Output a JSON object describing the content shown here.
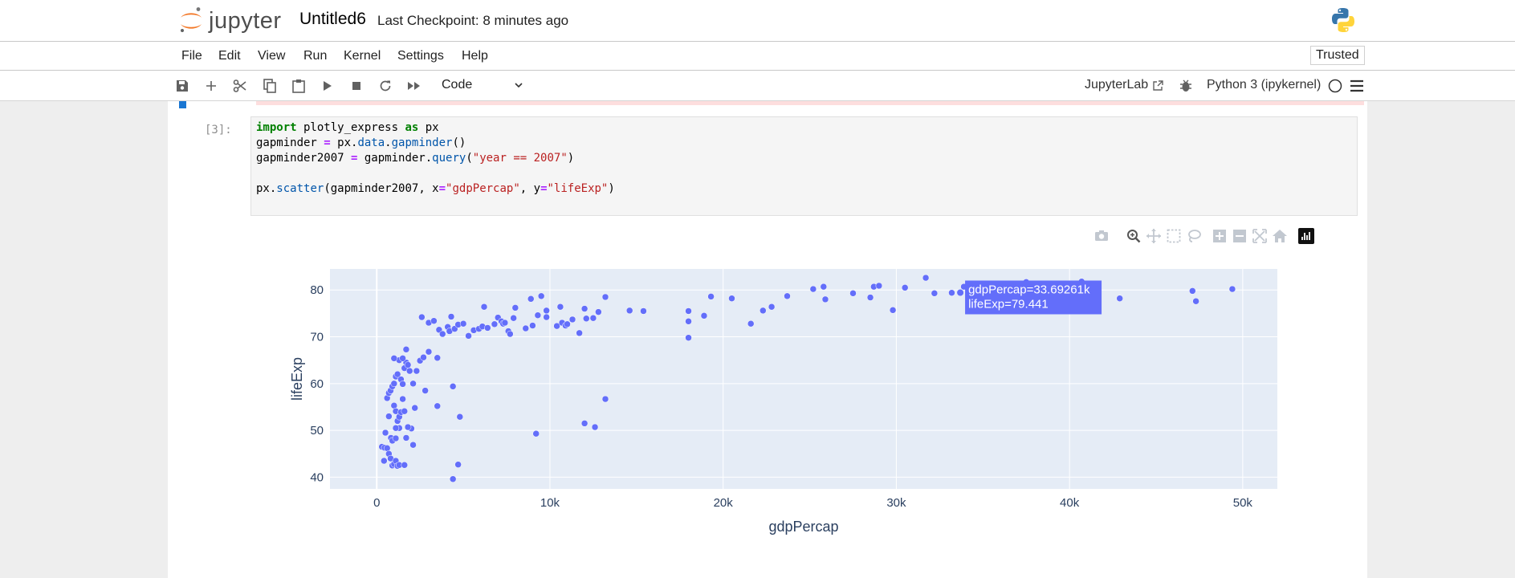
{
  "app": {
    "logo_text": "jupyter",
    "notebook_title": "Untitled6",
    "checkpoint": "Last Checkpoint: 8 minutes ago"
  },
  "menu": {
    "items": [
      "File",
      "Edit",
      "View",
      "Run",
      "Kernel",
      "Settings",
      "Help"
    ],
    "trusted": "Trusted"
  },
  "toolbar": {
    "cell_type": "Code",
    "jupyterlab_label": "JupyterLab",
    "kernel_name": "Python 3 (ipykernel)"
  },
  "cell": {
    "prompt": "[3]:",
    "lines": [
      [
        {
          "t": "import",
          "c": "kw"
        },
        {
          "t": " plotly_express ",
          "c": ""
        },
        {
          "t": "as",
          "c": "kw"
        },
        {
          "t": " px",
          "c": ""
        }
      ],
      [
        {
          "t": "gapminder ",
          "c": ""
        },
        {
          "t": "=",
          "c": "op"
        },
        {
          "t": " px.",
          "c": ""
        },
        {
          "t": "data",
          "c": "attr"
        },
        {
          "t": ".",
          "c": ""
        },
        {
          "t": "gapminder",
          "c": "attr"
        },
        {
          "t": "()",
          "c": ""
        }
      ],
      [
        {
          "t": "gapminder2007 ",
          "c": ""
        },
        {
          "t": "=",
          "c": "op"
        },
        {
          "t": " gapminder.",
          "c": ""
        },
        {
          "t": "query",
          "c": "attr"
        },
        {
          "t": "(",
          "c": ""
        },
        {
          "t": "\"year == 2007\"",
          "c": "str"
        },
        {
          "t": ")",
          "c": ""
        }
      ],
      [],
      [
        {
          "t": "px.",
          "c": ""
        },
        {
          "t": "scatter",
          "c": "attr"
        },
        {
          "t": "(gapminder2007, x",
          "c": ""
        },
        {
          "t": "=",
          "c": "op"
        },
        {
          "t": "\"gdpPercap\"",
          "c": "str"
        },
        {
          "t": ", y",
          "c": ""
        },
        {
          "t": "=",
          "c": "op"
        },
        {
          "t": "\"lifeExp\"",
          "c": "str"
        },
        {
          "t": ")",
          "c": ""
        }
      ]
    ]
  },
  "modebar": {
    "icons": [
      "camera-icon",
      "zoom-icon",
      "pan-icon",
      "box-select-icon",
      "lasso-icon",
      "zoom-in-icon",
      "zoom-out-icon",
      "autoscale-icon",
      "reset-axes-icon",
      "plotly-logo-icon"
    ]
  },
  "chart_data": {
    "type": "scatter",
    "title": "",
    "xlabel": "gdpPercap",
    "ylabel": "lifeExp",
    "xlim": [
      -2700,
      52000
    ],
    "ylim": [
      37.5,
      84.5
    ],
    "x_ticks": [
      0,
      10000,
      20000,
      30000,
      40000,
      50000
    ],
    "x_tick_labels": [
      "0",
      "10k",
      "20k",
      "30k",
      "40k",
      "50k"
    ],
    "y_ticks": [
      40,
      50,
      60,
      70,
      80
    ],
    "y_tick_labels": [
      "40",
      "50",
      "60",
      "70",
      "80"
    ],
    "color": "#636efa",
    "grid": true,
    "hover": {
      "x": 33692.61,
      "y": 79.441,
      "line1": "gdpPercap=33.69261k",
      "line2": "lifeExp=79.441"
    },
    "points": [
      [
        300,
        46.5
      ],
      [
        450,
        46.3
      ],
      [
        600,
        46.2
      ],
      [
        700,
        45
      ],
      [
        800,
        44
      ],
      [
        900,
        42.5
      ],
      [
        1000,
        42.8
      ],
      [
        1100,
        43.5
      ],
      [
        1200,
        42.4
      ],
      [
        1300,
        42.6
      ],
      [
        1600,
        42.6
      ],
      [
        420,
        43.5
      ],
      [
        500,
        49.5
      ],
      [
        820,
        48.4
      ],
      [
        900,
        47.8
      ],
      [
        1100,
        48.3
      ],
      [
        1300,
        50.5
      ],
      [
        1700,
        48.4
      ],
      [
        2000,
        50.4
      ],
      [
        2100,
        46.9
      ],
      [
        1800,
        50.7
      ],
      [
        600,
        56.9
      ],
      [
        700,
        58.0
      ],
      [
        800,
        58.5
      ],
      [
        900,
        59.5
      ],
      [
        1000,
        55.3
      ],
      [
        1100,
        54.1
      ],
      [
        1200,
        52.0
      ],
      [
        1300,
        52.9
      ],
      [
        1400,
        53.9
      ],
      [
        1500,
        56.7
      ],
      [
        1600,
        54.1
      ],
      [
        700,
        53.0
      ],
      [
        1100,
        50.5
      ],
      [
        2200,
        54.8
      ],
      [
        900,
        59.4
      ],
      [
        1000,
        60.0
      ],
      [
        1100,
        61.5
      ],
      [
        1200,
        62.0
      ],
      [
        1400,
        60.9
      ],
      [
        1500,
        59.9
      ],
      [
        1600,
        63.3
      ],
      [
        1700,
        64.5
      ],
      [
        1900,
        62.7
      ],
      [
        2100,
        60.0
      ],
      [
        2300,
        62.7
      ],
      [
        2800,
        58.5
      ],
      [
        1300,
        65.0
      ],
      [
        1000,
        65.4
      ],
      [
        1500,
        65.4
      ],
      [
        1700,
        67.3
      ],
      [
        2500,
        64.9
      ],
      [
        1800,
        64.0
      ],
      [
        3000,
        66.8
      ],
      [
        3500,
        65.5
      ],
      [
        2700,
        65.6
      ],
      [
        2600,
        74.2
      ],
      [
        3000,
        73.0
      ],
      [
        3300,
        73.4
      ],
      [
        3600,
        71.5
      ],
      [
        3800,
        70.6
      ],
      [
        4100,
        72.1
      ],
      [
        4200,
        71.2
      ],
      [
        4300,
        74.3
      ],
      [
        4500,
        71.7
      ],
      [
        4700,
        72.6
      ],
      [
        5000,
        72.8
      ],
      [
        5300,
        70.2
      ],
      [
        5600,
        71.4
      ],
      [
        5900,
        71.7
      ],
      [
        6100,
        72.2
      ],
      [
        6200,
        76.4
      ],
      [
        6400,
        71.9
      ],
      [
        6800,
        72.7
      ],
      [
        7000,
        74.1
      ],
      [
        7200,
        73.3
      ],
      [
        7300,
        72.8
      ],
      [
        7400,
        73.0
      ],
      [
        7600,
        71.2
      ],
      [
        7700,
        70.6
      ],
      [
        7900,
        74.0
      ],
      [
        8000,
        76.2
      ],
      [
        8600,
        71.8
      ],
      [
        9000,
        72.4
      ],
      [
        9300,
        74.6
      ],
      [
        8900,
        78.1
      ],
      [
        9500,
        78.7
      ],
      [
        9800,
        75.6
      ],
      [
        9800,
        74.2
      ],
      [
        10400,
        72.3
      ],
      [
        10600,
        76.4
      ],
      [
        10700,
        73.0
      ],
      [
        10900,
        72.4
      ],
      [
        11000,
        72.7
      ],
      [
        11300,
        73.7
      ],
      [
        11700,
        70.8
      ],
      [
        12000,
        76.0
      ],
      [
        12100,
        73.9
      ],
      [
        12500,
        74.0
      ],
      [
        12800,
        75.3
      ],
      [
        13200,
        78.5
      ],
      [
        14600,
        75.6
      ],
      [
        15400,
        75.5
      ],
      [
        18000,
        69.8
      ],
      [
        18000,
        73.3
      ],
      [
        18000,
        75.5
      ],
      [
        18900,
        74.5
      ],
      [
        19300,
        78.6
      ],
      [
        20500,
        78.2
      ],
      [
        21600,
        72.8
      ],
      [
        22300,
        75.6
      ],
      [
        22800,
        76.4
      ],
      [
        23700,
        78.7
      ],
      [
        25200,
        80.2
      ],
      [
        25800,
        80.7
      ],
      [
        25900,
        78.0
      ],
      [
        27500,
        79.3
      ],
      [
        28500,
        78.4
      ],
      [
        28700,
        80.7
      ],
      [
        29000,
        80.9
      ],
      [
        29800,
        75.7
      ],
      [
        30500,
        80.5
      ],
      [
        31700,
        82.6
      ],
      [
        32200,
        79.3
      ],
      [
        33200,
        79.4
      ],
      [
        33700,
        79.4
      ],
      [
        33900,
        80.7
      ],
      [
        34500,
        80.9
      ],
      [
        36100,
        79.8
      ],
      [
        36200,
        81.2
      ],
      [
        37500,
        81.7
      ],
      [
        38100,
        80.2
      ],
      [
        40700,
        81.8
      ],
      [
        42900,
        78.2
      ],
      [
        47100,
        79.8
      ],
      [
        47300,
        77.6
      ],
      [
        49400,
        80.2
      ],
      [
        3500,
        55.2
      ],
      [
        4400,
        59.4
      ],
      [
        4700,
        42.7
      ],
      [
        4400,
        39.6
      ],
      [
        4800,
        52.9
      ],
      [
        9200,
        49.3
      ],
      [
        12000,
        51.5
      ],
      [
        12600,
        50.7
      ],
      [
        13200,
        56.7
      ]
    ]
  }
}
